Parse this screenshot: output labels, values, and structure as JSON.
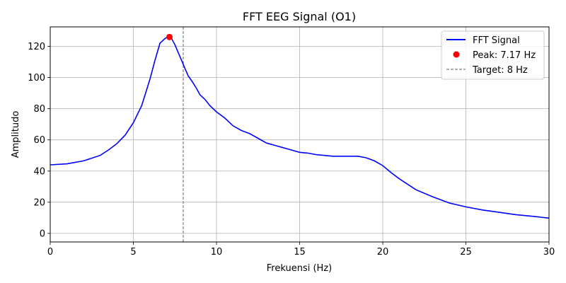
{
  "chart_data": {
    "type": "line",
    "title": "FFT EEG Signal (O1)",
    "xlabel": "Frekuensi (Hz)",
    "ylabel": "Amplitudo",
    "xlim": [
      0,
      30
    ],
    "ylim": [
      -5.5,
      132.5
    ],
    "xticks": [
      0,
      5,
      10,
      15,
      20,
      25,
      30
    ],
    "yticks": [
      0,
      20,
      40,
      60,
      80,
      100,
      120
    ],
    "grid": true,
    "legend_position": "top-right",
    "series": [
      {
        "name": "FFT Signal",
        "color": "#0000ff",
        "style": "solid",
        "x": [
          0,
          1,
          2,
          3,
          3.5,
          4,
          4.5,
          5,
          5.5,
          6,
          6.3,
          6.6,
          6.9,
          7.05,
          7.17,
          7.3,
          7.5,
          7.7,
          7.9,
          8.1,
          8.3,
          8.5,
          8.8,
          9.0,
          9.3,
          9.6,
          10.0,
          10.5,
          11.0,
          11.5,
          12.0,
          12.5,
          13.0,
          13.5,
          14.0,
          14.5,
          15.0,
          15.5,
          16.0,
          16.5,
          17.0,
          17.5,
          18.0,
          18.5,
          19.0,
          19.5,
          20.0,
          20.5,
          21.0,
          22.0,
          23.0,
          24.0,
          25.0,
          26.0,
          27.0,
          28.0,
          29.0,
          30.0
        ],
        "y": [
          44,
          44.6,
          46.5,
          50,
          53.5,
          57.5,
          63,
          71,
          82,
          99,
          111,
          122,
          125,
          126,
          126,
          125,
          121,
          116,
          111,
          106,
          101,
          98,
          93,
          89,
          86,
          82,
          78,
          74,
          69,
          66,
          64,
          61,
          58,
          56.5,
          55,
          53.5,
          52,
          51.5,
          50.5,
          50,
          49.5,
          49.5,
          49.5,
          49.5,
          48.5,
          46.5,
          43.5,
          39,
          35,
          28,
          23.5,
          19.5,
          17,
          15,
          13.5,
          12,
          11,
          9.8
        ]
      }
    ],
    "points": [
      {
        "name": "Peak: 7.17 Hz",
        "x": 7.17,
        "y": 126,
        "color": "#ff0000"
      }
    ],
    "vlines": [
      {
        "name": "Target: 8 Hz",
        "x": 8,
        "color": "#808080",
        "style": "dashed"
      }
    ]
  }
}
